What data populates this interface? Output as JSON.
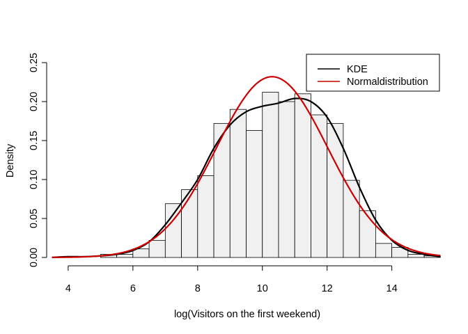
{
  "chart_data": {
    "type": "histogram",
    "title": "",
    "xlabel": "log(Visitors on the first weekend)",
    "ylabel": "Density",
    "xlim": [
      3.55,
      15.45
    ],
    "ylim": [
      0,
      0.25
    ],
    "x_ticks": [
      4,
      6,
      8,
      10,
      12,
      14
    ],
    "y_ticks": [
      0.0,
      0.05,
      0.1,
      0.15,
      0.2,
      0.25
    ],
    "y_tick_labels": [
      "0.00",
      "0.05",
      "0.10",
      "0.15",
      "0.20",
      "0.25"
    ],
    "bins": [
      {
        "start": 5.0,
        "end": 5.5,
        "density": 0.004
      },
      {
        "start": 5.5,
        "end": 6.0,
        "density": 0.004
      },
      {
        "start": 6.0,
        "end": 6.5,
        "density": 0.011
      },
      {
        "start": 6.5,
        "end": 7.0,
        "density": 0.022
      },
      {
        "start": 7.0,
        "end": 7.5,
        "density": 0.069
      },
      {
        "start": 7.5,
        "end": 8.0,
        "density": 0.087
      },
      {
        "start": 8.0,
        "end": 8.5,
        "density": 0.105
      },
      {
        "start": 8.5,
        "end": 9.0,
        "density": 0.172
      },
      {
        "start": 9.0,
        "end": 9.5,
        "density": 0.19
      },
      {
        "start": 9.5,
        "end": 10.0,
        "density": 0.163
      },
      {
        "start": 10.0,
        "end": 10.5,
        "density": 0.212
      },
      {
        "start": 10.5,
        "end": 11.0,
        "density": 0.2
      },
      {
        "start": 11.0,
        "end": 11.5,
        "density": 0.21
      },
      {
        "start": 11.5,
        "end": 12.0,
        "density": 0.183
      },
      {
        "start": 12.0,
        "end": 12.5,
        "density": 0.172
      },
      {
        "start": 12.5,
        "end": 13.0,
        "density": 0.099
      },
      {
        "start": 13.0,
        "end": 13.5,
        "density": 0.06
      },
      {
        "start": 13.5,
        "end": 14.0,
        "density": 0.018
      },
      {
        "start": 14.0,
        "end": 14.5,
        "density": 0.013
      },
      {
        "start": 14.5,
        "end": 15.0,
        "density": 0.004
      },
      {
        "start": 15.0,
        "end": 15.5,
        "density": 0.002
      }
    ],
    "bar_fill": "#f0f0f0",
    "series": [
      {
        "name": "KDE",
        "color": "#000000",
        "x": [
          3.5,
          4.0,
          4.5,
          5.0,
          5.5,
          6.0,
          6.5,
          7.0,
          7.5,
          8.0,
          8.5,
          9.0,
          9.5,
          10.0,
          10.5,
          11.0,
          11.5,
          12.0,
          12.5,
          13.0,
          13.5,
          14.0,
          14.5,
          15.0,
          15.5
        ],
        "y": [
          0.0,
          0.001,
          0.001,
          0.002,
          0.004,
          0.009,
          0.02,
          0.042,
          0.07,
          0.1,
          0.14,
          0.17,
          0.187,
          0.194,
          0.198,
          0.204,
          0.2,
          0.18,
          0.14,
          0.09,
          0.048,
          0.022,
          0.009,
          0.004,
          0.001
        ]
      },
      {
        "name": "Normaldistribution",
        "color": "#cc0000",
        "mean": 10.3,
        "sd": 1.72,
        "x_range": [
          3.5,
          15.5
        ]
      }
    ],
    "legend_position": "top-right"
  }
}
